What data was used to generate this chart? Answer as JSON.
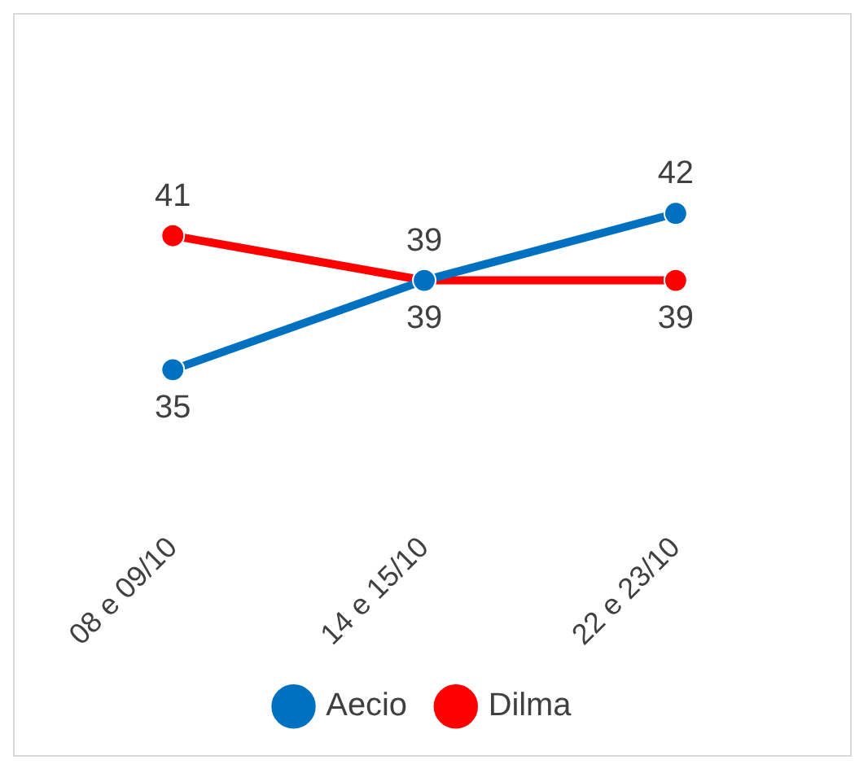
{
  "chart_data": {
    "type": "line",
    "categories": [
      "08 e 09/10",
      "14 e 15/10",
      "22 e 23/10"
    ],
    "series": [
      {
        "name": "Aecio",
        "color": "#0070c0",
        "values": [
          35,
          39,
          42
        ]
      },
      {
        "name": "Dilma",
        "color": "#ff0000",
        "values": [
          41,
          39,
          39
        ]
      }
    ],
    "data_labels": true,
    "legend": "bottom",
    "marker": "circle"
  }
}
